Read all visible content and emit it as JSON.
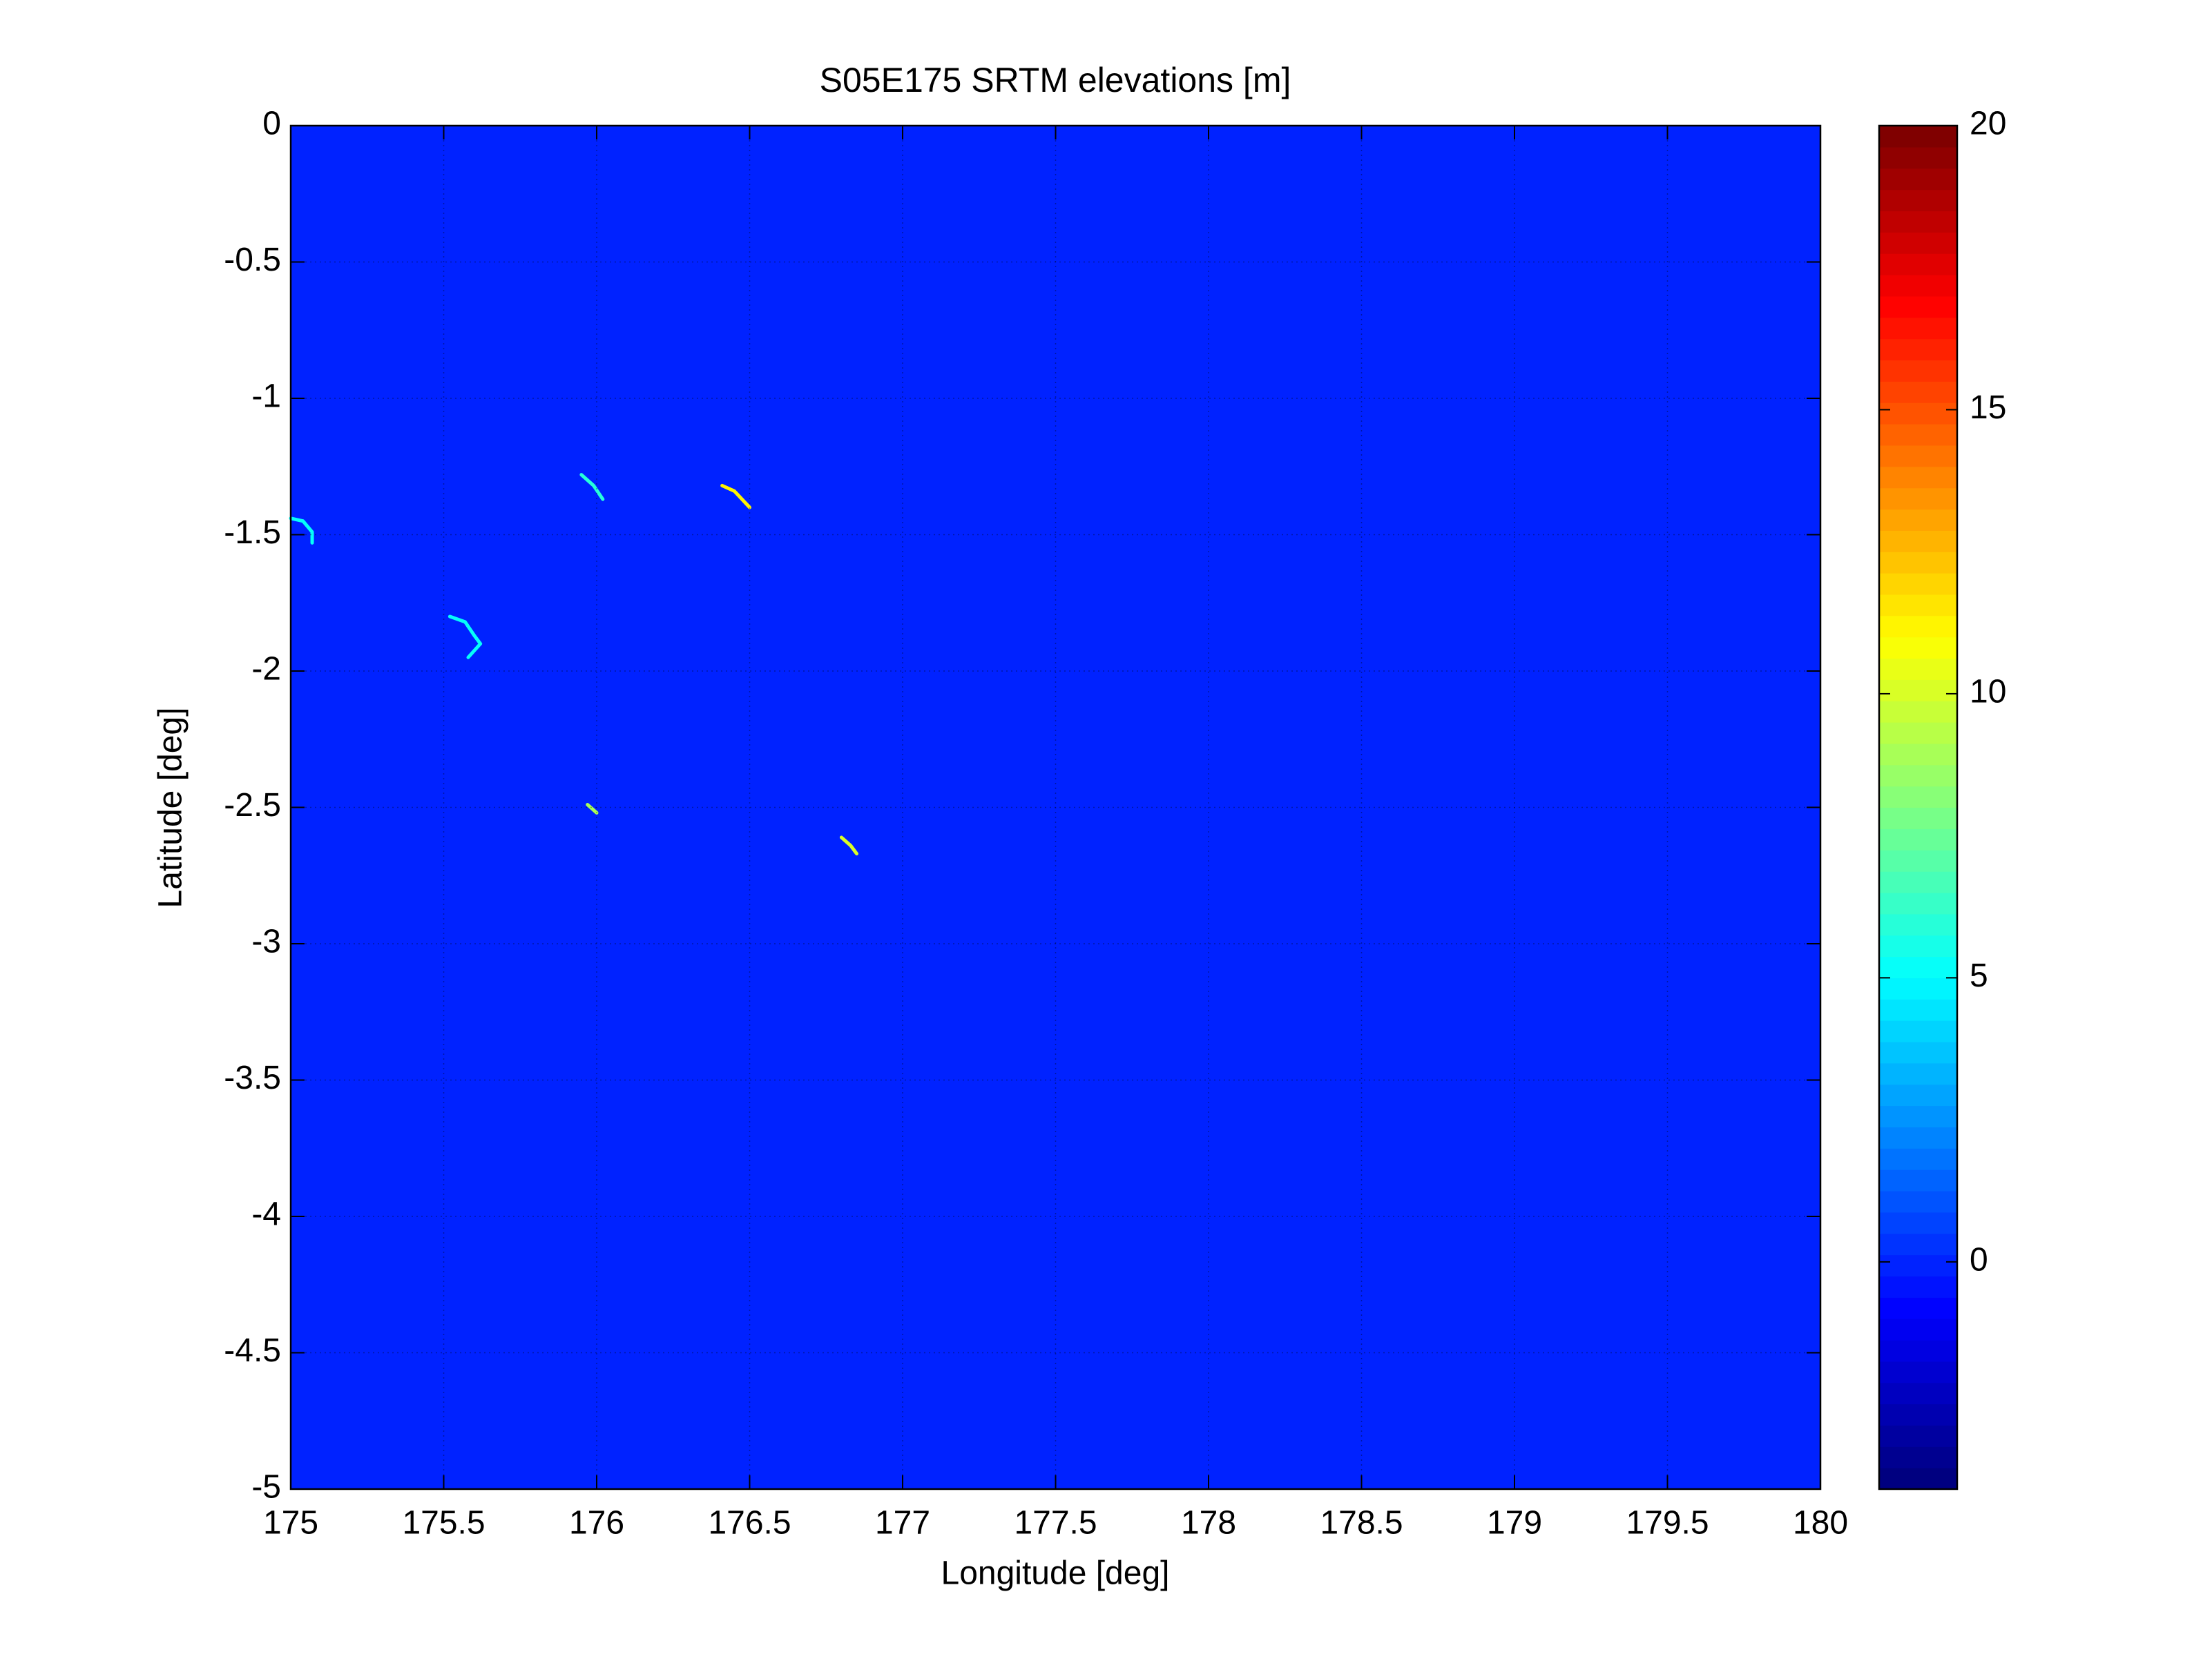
{
  "chart_data": {
    "type": "heatmap",
    "title": "S05E175 SRTM elevations [m]",
    "x_label": "Longitude [deg]",
    "y_label": "Latitude [deg]",
    "colormap": "jet",
    "fill_value": 0,
    "features": [
      {
        "lon": [
          175.0,
          175.04,
          175.07,
          175.07
        ],
        "lat": [
          -1.44,
          -1.45,
          -1.49,
          -1.53
        ],
        "value": 5
      },
      {
        "lon": [
          175.95,
          175.99,
          176.02
        ],
        "lat": [
          -1.28,
          -1.32,
          -1.37
        ],
        "value": 6
      },
      {
        "lon": [
          176.41,
          176.45,
          176.5
        ],
        "lat": [
          -1.32,
          -1.34,
          -1.4
        ],
        "value": 11
      },
      {
        "lon": [
          175.52,
          175.57,
          175.6,
          175.62,
          175.58
        ],
        "lat": [
          -1.8,
          -1.82,
          -1.87,
          -1.9,
          -1.95
        ],
        "value": 5
      },
      {
        "lon": [
          175.97,
          176.0
        ],
        "lat": [
          -2.49,
          -2.52
        ],
        "value": 9
      },
      {
        "lon": [
          176.8,
          176.83,
          176.85
        ],
        "lat": [
          -2.61,
          -2.64,
          -2.67
        ],
        "value": 10
      }
    ],
    "xlim": [
      175,
      180
    ],
    "xticks": [
      175,
      175.5,
      176,
      176.5,
      177,
      177.5,
      178,
      178.5,
      179,
      179.5,
      180
    ],
    "ylim": [
      -5,
      0
    ],
    "yticks": [
      0,
      -0.5,
      -1,
      -1.5,
      -2,
      -2.5,
      -3,
      -3.5,
      -4,
      -4.5,
      -5
    ],
    "clim": [
      -4,
      20
    ],
    "cticks": [
      0,
      5,
      10,
      15,
      20
    ],
    "grid": true
  }
}
